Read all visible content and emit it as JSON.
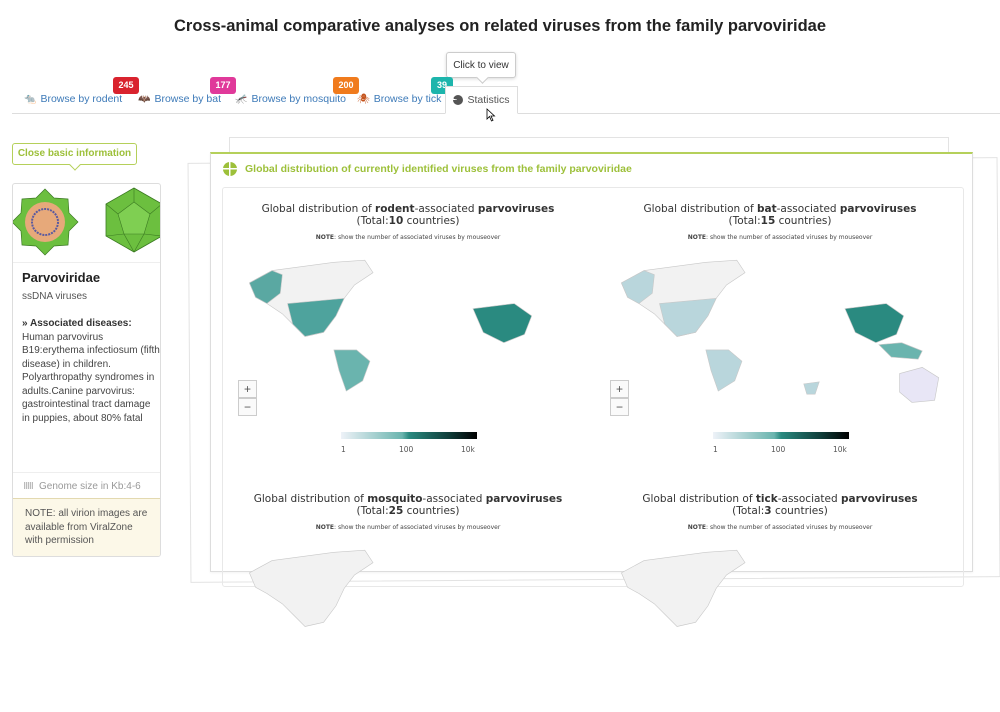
{
  "page_title": "Cross-animal comparative analyses on related viruses from the family parvoviridae",
  "tabs": [
    {
      "label": "Browse by rodent",
      "badge": "245",
      "badge_color": "#d9232e"
    },
    {
      "label": "Browse by bat",
      "badge": "177",
      "badge_color": "#e0399a"
    },
    {
      "label": "Browse by mosquito",
      "badge": "200",
      "badge_color": "#f07b1d"
    },
    {
      "label": "Browse by tick",
      "badge": "39",
      "badge_color": "#1db5ac"
    },
    {
      "label": "Statistics"
    }
  ],
  "tooltip": "Click to view",
  "sidebar": {
    "close_button": "Close basic information",
    "virus_name": "Parvoviridae",
    "virus_type": "ssDNA viruses",
    "diseases_heading": "Associated diseases:",
    "diseases_text": "Human parvovirus B19:erythema infectiosum (fifth disease) in children. Polyarthropathy syndromes in adults.Canine parvovirus: gastrointestinal tract damage in puppies, about 80% fatal",
    "genome": "Genome size in Kb:4-6",
    "note": "NOTE: all virion images are available from ViralZone with permission"
  },
  "main": {
    "heading": "Global distribution of currently identified viruses from the family parvoviridae",
    "note_label": "NOTE",
    "note_text": ": show the number of associated viruses by mouseover",
    "legend": [
      "1",
      "100",
      "10k"
    ],
    "zoom_in": "+",
    "zoom_out": "−",
    "charts": [
      {
        "pre": "Global distribution of ",
        "animal": "rodent",
        "mid": "-associated ",
        "family": "parvoviruses",
        "total_pre": "(Total:",
        "total": "10",
        "total_post": " countries)"
      },
      {
        "pre": "Global distribution of ",
        "animal": "bat",
        "mid": "-associated ",
        "family": "parvoviruses",
        "total_pre": "(Total:",
        "total": "15",
        "total_post": " countries)"
      },
      {
        "pre": "Global distribution of ",
        "animal": "mosquito",
        "mid": "-associated ",
        "family": "parvoviruses",
        "total_pre": "(Total:",
        "total": "25",
        "total_post": " countries)"
      },
      {
        "pre": "Global distribution of ",
        "animal": "tick",
        "mid": "-associated ",
        "family": "parvoviruses",
        "total_pre": "(Total:",
        "total": "3",
        "total_post": " countries)"
      }
    ]
  }
}
